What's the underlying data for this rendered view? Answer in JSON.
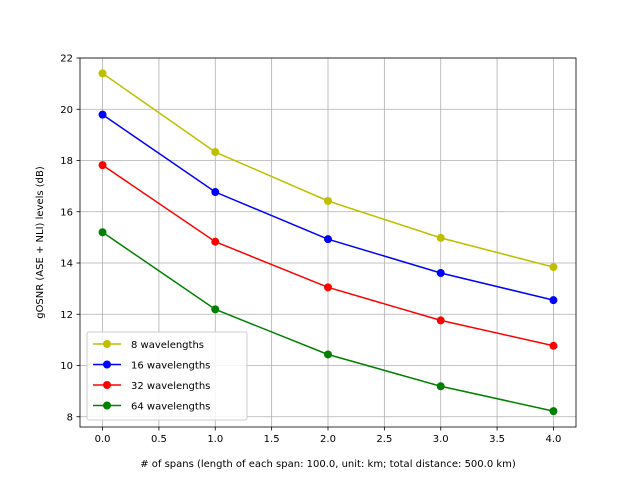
{
  "chart_data": {
    "type": "line",
    "title": "",
    "xlabel": "# of spans (length of each span: 100.0, unit: km; total distance: 500.0 km)",
    "ylabel": "gOSNR (ASE + NLI) levels (dB)",
    "xlim": [
      -0.2,
      4.2
    ],
    "ylim": [
      7.6,
      22
    ],
    "xticks": [
      0.0,
      0.5,
      1.0,
      1.5,
      2.0,
      2.5,
      3.0,
      3.5,
      4.0
    ],
    "xtick_labels": [
      "0.0",
      "0.5",
      "1.0",
      "1.5",
      "2.0",
      "2.5",
      "3.0",
      "3.5",
      "4.0"
    ],
    "yticks": [
      8,
      10,
      12,
      14,
      16,
      18,
      20,
      22
    ],
    "ytick_labels": [
      "8",
      "10",
      "12",
      "14",
      "16",
      "18",
      "20",
      "22"
    ],
    "grid": true,
    "legend_position": "bottom-left",
    "x": [
      0,
      1,
      2,
      3,
      4
    ],
    "series": [
      {
        "name": "8 wavelengths",
        "color": "#bfbf00",
        "values": [
          21.4,
          18.33,
          16.42,
          14.98,
          13.84
        ]
      },
      {
        "name": "16 wavelengths",
        "color": "#0000ff",
        "values": [
          19.79,
          16.77,
          14.93,
          13.61,
          12.55
        ]
      },
      {
        "name": "32 wavelengths",
        "color": "#ff0000",
        "values": [
          17.82,
          14.83,
          13.05,
          11.76,
          10.77
        ]
      },
      {
        "name": "64 wavelengths",
        "color": "#008000",
        "values": [
          15.2,
          12.19,
          10.43,
          9.19,
          8.22
        ]
      }
    ]
  }
}
